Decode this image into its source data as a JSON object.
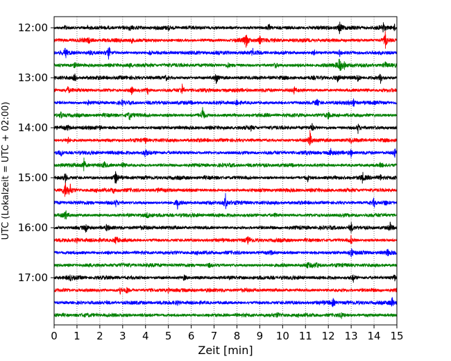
{
  "chart_data": {
    "type": "line",
    "title": "",
    "xlabel": "Zeit  [min]",
    "ylabel": "UTC (Lokalzeit = UTC + 02:00)",
    "xlim": [
      0,
      15
    ],
    "x_ticks": [
      "0",
      "1",
      "2",
      "3",
      "4",
      "5",
      "6",
      "7",
      "8",
      "9",
      "10",
      "11",
      "12",
      "13",
      "14",
      "15"
    ],
    "y_ticks": [
      "12:00",
      "13:00",
      "14:00",
      "15:00",
      "16:00",
      "17:00"
    ],
    "grid": "vertical dotted lines at each minute",
    "trace_interval_min": 15,
    "trace_colors": [
      "#000000",
      "#ff0000",
      "#0000ff",
      "#008000"
    ],
    "traces": [
      {
        "start": "12:00",
        "color": "#000000",
        "spikes": [
          [
            0.5,
            0.25
          ],
          [
            1.5,
            0.25
          ],
          [
            3.3,
            0.2
          ],
          [
            5.0,
            0.2
          ],
          [
            9.4,
            0.35
          ],
          [
            12.5,
            0.7
          ],
          [
            14.4,
            0.55
          ],
          [
            14.9,
            0.3
          ]
        ]
      },
      {
        "start": "12:15",
        "color": "#ff0000",
        "spikes": [
          [
            1.5,
            0.25
          ],
          [
            3.4,
            0.25
          ],
          [
            8.4,
            1.0
          ],
          [
            9.0,
            0.6
          ],
          [
            14.5,
            1.0
          ]
        ]
      },
      {
        "start": "12:30",
        "color": "#0000ff",
        "spikes": [
          [
            0.5,
            0.55
          ],
          [
            1.6,
            0.3
          ],
          [
            2.4,
            0.8
          ],
          [
            4.2,
            0.2
          ],
          [
            8.7,
            0.3
          ],
          [
            11.4,
            0.25
          ],
          [
            12.5,
            0.3
          ]
        ]
      },
      {
        "start": "12:45",
        "color": "#008000",
        "spikes": [
          [
            0.9,
            0.35
          ],
          [
            3.3,
            0.25
          ],
          [
            7.6,
            0.3
          ],
          [
            9.7,
            0.3
          ],
          [
            12.5,
            1.0
          ],
          [
            12.7,
            0.5
          ],
          [
            14.5,
            0.3
          ]
        ]
      },
      {
        "start": "13:00",
        "color": "#000000",
        "spikes": [
          [
            0.9,
            0.45
          ],
          [
            4.9,
            0.25
          ],
          [
            7.1,
            0.65
          ],
          [
            12.4,
            0.4
          ],
          [
            13.3,
            0.5
          ],
          [
            14.3,
            0.7
          ]
        ]
      },
      {
        "start": "13:15",
        "color": "#ff0000",
        "spikes": [
          [
            0.6,
            0.4
          ],
          [
            3.4,
            0.45
          ],
          [
            4.1,
            0.35
          ],
          [
            5.6,
            0.55
          ],
          [
            10.5,
            0.3
          ]
        ]
      },
      {
        "start": "13:30",
        "color": "#0000ff",
        "spikes": [
          [
            1.5,
            0.2
          ],
          [
            3.0,
            0.2
          ],
          [
            8.0,
            0.45
          ],
          [
            11.5,
            0.35
          ],
          [
            13.1,
            0.45
          ]
        ]
      },
      {
        "start": "13:45",
        "color": "#008000",
        "spikes": [
          [
            0.3,
            0.4
          ],
          [
            3.3,
            0.5
          ],
          [
            6.5,
            1.0
          ],
          [
            12.0,
            0.25
          ]
        ]
      },
      {
        "start": "14:00",
        "color": "#000000",
        "spikes": [
          [
            0.6,
            0.25
          ],
          [
            2.0,
            0.2
          ],
          [
            8.6,
            0.2
          ],
          [
            11.3,
            0.35
          ],
          [
            13.3,
            0.5
          ]
        ]
      },
      {
        "start": "14:15",
        "color": "#ff0000",
        "spikes": [
          [
            0.6,
            0.4
          ],
          [
            4.0,
            0.25
          ],
          [
            11.2,
            1.0
          ],
          [
            13.0,
            0.25
          ]
        ]
      },
      {
        "start": "14:30",
        "color": "#0000ff",
        "spikes": [
          [
            0.3,
            0.35
          ],
          [
            4.0,
            0.45
          ],
          [
            12.1,
            0.4
          ],
          [
            13.0,
            0.35
          ],
          [
            14.9,
            0.5
          ]
        ]
      },
      {
        "start": "14:45",
        "color": "#008000",
        "spikes": [
          [
            1.3,
            0.75
          ],
          [
            2.2,
            0.3
          ],
          [
            3.0,
            0.3
          ],
          [
            14.3,
            0.25
          ]
        ]
      },
      {
        "start": "15:00",
        "color": "#000000",
        "spikes": [
          [
            0.5,
            0.6
          ],
          [
            2.7,
            0.9
          ],
          [
            11.1,
            0.3
          ],
          [
            13.5,
            0.5
          ],
          [
            14.3,
            0.35
          ]
        ]
      },
      {
        "start": "15:15",
        "color": "#ff0000",
        "spikes": [
          [
            0.5,
            1.0
          ],
          [
            0.7,
            0.6
          ],
          [
            2.6,
            0.3
          ],
          [
            4.6,
            0.2
          ]
        ]
      },
      {
        "start": "15:30",
        "color": "#0000ff",
        "spikes": [
          [
            2.7,
            0.3
          ],
          [
            5.4,
            0.6
          ],
          [
            7.5,
            0.9
          ],
          [
            14.0,
            0.55
          ],
          [
            14.5,
            0.35
          ]
        ]
      },
      {
        "start": "15:45",
        "color": "#008000",
        "spikes": [
          [
            0.5,
            0.55
          ],
          [
            4.1,
            0.55
          ],
          [
            9.7,
            0.25
          ]
        ]
      },
      {
        "start": "16:00",
        "color": "#000000",
        "spikes": [
          [
            1.4,
            0.5
          ],
          [
            2.3,
            0.25
          ],
          [
            13.0,
            0.5
          ],
          [
            14.7,
            0.5
          ]
        ]
      },
      {
        "start": "16:15",
        "color": "#ff0000",
        "spikes": [
          [
            1.0,
            0.25
          ],
          [
            2.7,
            0.55
          ],
          [
            8.5,
            0.4
          ],
          [
            13.0,
            0.45
          ]
        ]
      },
      {
        "start": "16:30",
        "color": "#0000ff",
        "spikes": [
          [
            2.4,
            0.2
          ],
          [
            9.5,
            0.2
          ],
          [
            13.0,
            0.55
          ],
          [
            14.6,
            0.3
          ]
        ]
      },
      {
        "start": "16:45",
        "color": "#008000",
        "spikes": [
          [
            6.8,
            0.2
          ],
          [
            11.1,
            0.25
          ],
          [
            11.5,
            0.3
          ]
        ]
      },
      {
        "start": "17:00",
        "color": "#000000",
        "spikes": [
          [
            0.7,
            0.25
          ],
          [
            5.7,
            0.35
          ],
          [
            13.1,
            0.45
          ],
          [
            14.9,
            0.3
          ]
        ]
      },
      {
        "start": "17:15",
        "color": "#ff0000",
        "spikes": [
          [
            2.9,
            0.4
          ],
          [
            3.2,
            0.35
          ],
          [
            5.0,
            0.2
          ]
        ]
      },
      {
        "start": "17:30",
        "color": "#0000ff",
        "spikes": [
          [
            5.4,
            0.2
          ],
          [
            12.2,
            0.5
          ],
          [
            14.8,
            0.6
          ]
        ]
      },
      {
        "start": "17:45",
        "color": "#008000",
        "spikes": [
          [
            9.8,
            0.2
          ],
          [
            12.6,
            0.35
          ]
        ]
      }
    ]
  }
}
